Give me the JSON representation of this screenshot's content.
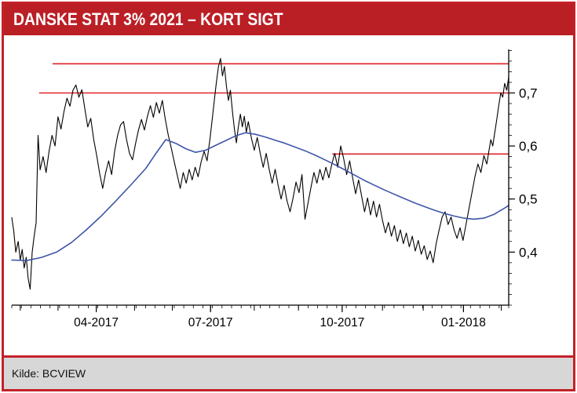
{
  "header": {
    "title": "DANSKE STAT 3% 2021 – KORT SIGT"
  },
  "footer": {
    "source": "Kilde: BCVIEW"
  },
  "colors": {
    "frame_red": "#c42127",
    "header_bg": "#bb1f26",
    "title_text": "#ffffff",
    "level_red": "#e02428",
    "price_black": "#000000",
    "ma_blue": "#3d56a8",
    "footer_bg": "#d7d7d7",
    "chart_bg": "#ffffff"
  },
  "chart_data": {
    "type": "line",
    "title": "DANSKE STAT 3% 2021 – KORT SIGT",
    "xlabel": "",
    "ylabel": "",
    "ylim": [
      0.3,
      0.785
    ],
    "y_axis_side": "right",
    "decimal_style": "comma",
    "grid": false,
    "legend": "none",
    "x_ticks": [
      {
        "label": "04-2017",
        "pos": 0.17
      },
      {
        "label": "07-2017",
        "pos": 0.4
      },
      {
        "label": "10-2017",
        "pos": 0.665
      },
      {
        "label": "01-2018",
        "pos": 0.909
      }
    ],
    "month_tick_positions": [
      0.017,
      0.093,
      0.17,
      0.247,
      0.323,
      0.4,
      0.488,
      0.577,
      0.665,
      0.746,
      0.828,
      0.909,
      0.985
    ],
    "weekly_minor_tick_count": 52,
    "y_ticks": [
      {
        "label": "0,7",
        "value": 0.7
      },
      {
        "label": "0,6",
        "value": 0.6
      },
      {
        "label": "0,5",
        "value": 0.5
      },
      {
        "label": "0,4",
        "value": 0.4
      }
    ],
    "y_minor_step": 0.02,
    "levels": [
      {
        "name": "resistance-upper",
        "value": 0.755,
        "from": 0.082,
        "to": 1.0
      },
      {
        "name": "resistance-mid",
        "value": 0.7,
        "from": 0.055,
        "to": 1.0
      },
      {
        "name": "support-short",
        "value": 0.585,
        "from": 0.645,
        "to": 1.0
      }
    ],
    "series": [
      {
        "name": "price",
        "color": "#000000",
        "width": 1.1,
        "points": [
          [
            0.0,
            0.465
          ],
          [
            0.004,
            0.44
          ],
          [
            0.008,
            0.4
          ],
          [
            0.013,
            0.42
          ],
          [
            0.017,
            0.385
          ],
          [
            0.021,
            0.405
          ],
          [
            0.025,
            0.37
          ],
          [
            0.029,
            0.39
          ],
          [
            0.033,
            0.35
          ],
          [
            0.037,
            0.33
          ],
          [
            0.041,
            0.4
          ],
          [
            0.045,
            0.43
          ],
          [
            0.049,
            0.455
          ],
          [
            0.053,
            0.62
          ],
          [
            0.057,
            0.555
          ],
          [
            0.063,
            0.58
          ],
          [
            0.069,
            0.55
          ],
          [
            0.075,
            0.59
          ],
          [
            0.081,
            0.62
          ],
          [
            0.087,
            0.6
          ],
          [
            0.093,
            0.655
          ],
          [
            0.099,
            0.632
          ],
          [
            0.105,
            0.665
          ],
          [
            0.111,
            0.69
          ],
          [
            0.117,
            0.675
          ],
          [
            0.123,
            0.705
          ],
          [
            0.129,
            0.715
          ],
          [
            0.135,
            0.692
          ],
          [
            0.141,
            0.706
          ],
          [
            0.147,
            0.67
          ],
          [
            0.153,
            0.636
          ],
          [
            0.159,
            0.652
          ],
          [
            0.165,
            0.612
          ],
          [
            0.171,
            0.582
          ],
          [
            0.177,
            0.548
          ],
          [
            0.183,
            0.52
          ],
          [
            0.189,
            0.55
          ],
          [
            0.195,
            0.572
          ],
          [
            0.201,
            0.546
          ],
          [
            0.207,
            0.59
          ],
          [
            0.213,
            0.62
          ],
          [
            0.219,
            0.64
          ],
          [
            0.225,
            0.646
          ],
          [
            0.231,
            0.612
          ],
          [
            0.237,
            0.586
          ],
          [
            0.243,
            0.574
          ],
          [
            0.249,
            0.604
          ],
          [
            0.255,
            0.63
          ],
          [
            0.261,
            0.65
          ],
          [
            0.267,
            0.63
          ],
          [
            0.273,
            0.656
          ],
          [
            0.279,
            0.676
          ],
          [
            0.285,
            0.654
          ],
          [
            0.291,
            0.682
          ],
          [
            0.297,
            0.662
          ],
          [
            0.303,
            0.686
          ],
          [
            0.309,
            0.65
          ],
          [
            0.315,
            0.62
          ],
          [
            0.321,
            0.596
          ],
          [
            0.327,
            0.57
          ],
          [
            0.333,
            0.545
          ],
          [
            0.339,
            0.52
          ],
          [
            0.345,
            0.55
          ],
          [
            0.351,
            0.53
          ],
          [
            0.357,
            0.556
          ],
          [
            0.363,
            0.536
          ],
          [
            0.369,
            0.56
          ],
          [
            0.375,
            0.542
          ],
          [
            0.381,
            0.57
          ],
          [
            0.387,
            0.59
          ],
          [
            0.393,
            0.572
          ],
          [
            0.399,
            0.615
          ],
          [
            0.404,
            0.655
          ],
          [
            0.408,
            0.69
          ],
          [
            0.412,
            0.722
          ],
          [
            0.416,
            0.75
          ],
          [
            0.42,
            0.765
          ],
          [
            0.424,
            0.732
          ],
          [
            0.428,
            0.75
          ],
          [
            0.432,
            0.712
          ],
          [
            0.436,
            0.686
          ],
          [
            0.44,
            0.705
          ],
          [
            0.444,
            0.665
          ],
          [
            0.448,
            0.632
          ],
          [
            0.452,
            0.606
          ],
          [
            0.456,
            0.636
          ],
          [
            0.46,
            0.66
          ],
          [
            0.464,
            0.636
          ],
          [
            0.468,
            0.656
          ],
          [
            0.472,
            0.626
          ],
          [
            0.476,
            0.646
          ],
          [
            0.482,
            0.616
          ],
          [
            0.488,
            0.592
          ],
          [
            0.494,
            0.616
          ],
          [
            0.5,
            0.586
          ],
          [
            0.506,
            0.56
          ],
          [
            0.512,
            0.586
          ],
          [
            0.518,
            0.556
          ],
          [
            0.524,
            0.53
          ],
          [
            0.53,
            0.556
          ],
          [
            0.536,
            0.526
          ],
          [
            0.542,
            0.5
          ],
          [
            0.548,
            0.526
          ],
          [
            0.554,
            0.496
          ],
          [
            0.56,
            0.476
          ],
          [
            0.566,
            0.502
          ],
          [
            0.572,
            0.532
          ],
          [
            0.578,
            0.512
          ],
          [
            0.584,
            0.546
          ],
          [
            0.59,
            0.462
          ],
          [
            0.596,
            0.492
          ],
          [
            0.602,
            0.522
          ],
          [
            0.608,
            0.55
          ],
          [
            0.614,
            0.53
          ],
          [
            0.62,
            0.556
          ],
          [
            0.626,
            0.536
          ],
          [
            0.632,
            0.56
          ],
          [
            0.638,
            0.54
          ],
          [
            0.644,
            0.566
          ],
          [
            0.65,
            0.586
          ],
          [
            0.656,
            0.56
          ],
          [
            0.662,
            0.6
          ],
          [
            0.668,
            0.576
          ],
          [
            0.674,
            0.546
          ],
          [
            0.68,
            0.572
          ],
          [
            0.686,
            0.54
          ],
          [
            0.692,
            0.51
          ],
          [
            0.698,
            0.536
          ],
          [
            0.704,
            0.506
          ],
          [
            0.71,
            0.476
          ],
          [
            0.716,
            0.502
          ],
          [
            0.722,
            0.47
          ],
          [
            0.728,
            0.496
          ],
          [
            0.734,
            0.466
          ],
          [
            0.74,
            0.49
          ],
          [
            0.746,
            0.46
          ],
          [
            0.752,
            0.436
          ],
          [
            0.758,
            0.456
          ],
          [
            0.764,
            0.43
          ],
          [
            0.77,
            0.45
          ],
          [
            0.776,
            0.42
          ],
          [
            0.782,
            0.442
          ],
          [
            0.788,
            0.416
          ],
          [
            0.794,
            0.436
          ],
          [
            0.8,
            0.41
          ],
          [
            0.806,
            0.43
          ],
          [
            0.812,
            0.402
          ],
          [
            0.818,
            0.422
          ],
          [
            0.824,
            0.396
          ],
          [
            0.83,
            0.412
          ],
          [
            0.836,
            0.386
          ],
          [
            0.842,
            0.402
          ],
          [
            0.848,
            0.38
          ],
          [
            0.854,
            0.416
          ],
          [
            0.86,
            0.442
          ],
          [
            0.866,
            0.466
          ],
          [
            0.872,
            0.476
          ],
          [
            0.878,
            0.452
          ],
          [
            0.884,
            0.466
          ],
          [
            0.89,
            0.442
          ],
          [
            0.896,
            0.426
          ],
          [
            0.902,
            0.446
          ],
          [
            0.908,
            0.422
          ],
          [
            0.914,
            0.452
          ],
          [
            0.92,
            0.482
          ],
          [
            0.926,
            0.512
          ],
          [
            0.932,
            0.542
          ],
          [
            0.938,
            0.566
          ],
          [
            0.944,
            0.55
          ],
          [
            0.95,
            0.582
          ],
          [
            0.956,
            0.566
          ],
          [
            0.96,
            0.59
          ],
          [
            0.964,
            0.612
          ],
          [
            0.968,
            0.6
          ],
          [
            0.972,
            0.626
          ],
          [
            0.976,
            0.65
          ],
          [
            0.98,
            0.676
          ],
          [
            0.984,
            0.7
          ],
          [
            0.988,
            0.692
          ],
          [
            0.992,
            0.718
          ],
          [
            0.996,
            0.705
          ],
          [
            1.0,
            0.73
          ]
        ]
      },
      {
        "name": "moving-average",
        "color": "#3d56a8",
        "width": 1.6,
        "points": [
          [
            0.0,
            0.385
          ],
          [
            0.03,
            0.384
          ],
          [
            0.06,
            0.39
          ],
          [
            0.09,
            0.4
          ],
          [
            0.12,
            0.418
          ],
          [
            0.15,
            0.442
          ],
          [
            0.18,
            0.468
          ],
          [
            0.21,
            0.497
          ],
          [
            0.24,
            0.527
          ],
          [
            0.27,
            0.558
          ],
          [
            0.29,
            0.586
          ],
          [
            0.31,
            0.612
          ],
          [
            0.33,
            0.605
          ],
          [
            0.35,
            0.595
          ],
          [
            0.37,
            0.588
          ],
          [
            0.39,
            0.592
          ],
          [
            0.41,
            0.601
          ],
          [
            0.43,
            0.61
          ],
          [
            0.45,
            0.619
          ],
          [
            0.47,
            0.625
          ],
          [
            0.49,
            0.622
          ],
          [
            0.51,
            0.617
          ],
          [
            0.53,
            0.611
          ],
          [
            0.55,
            0.605
          ],
          [
            0.57,
            0.598
          ],
          [
            0.59,
            0.591
          ],
          [
            0.61,
            0.583
          ],
          [
            0.63,
            0.574
          ],
          [
            0.65,
            0.565
          ],
          [
            0.67,
            0.555
          ],
          [
            0.69,
            0.545
          ],
          [
            0.71,
            0.535
          ],
          [
            0.73,
            0.526
          ],
          [
            0.75,
            0.517
          ],
          [
            0.77,
            0.509
          ],
          [
            0.79,
            0.501
          ],
          [
            0.81,
            0.493
          ],
          [
            0.83,
            0.486
          ],
          [
            0.85,
            0.479
          ],
          [
            0.87,
            0.473
          ],
          [
            0.89,
            0.468
          ],
          [
            0.91,
            0.464
          ],
          [
            0.93,
            0.462
          ],
          [
            0.95,
            0.464
          ],
          [
            0.97,
            0.471
          ],
          [
            0.99,
            0.482
          ],
          [
            1.0,
            0.488
          ]
        ]
      }
    ]
  }
}
